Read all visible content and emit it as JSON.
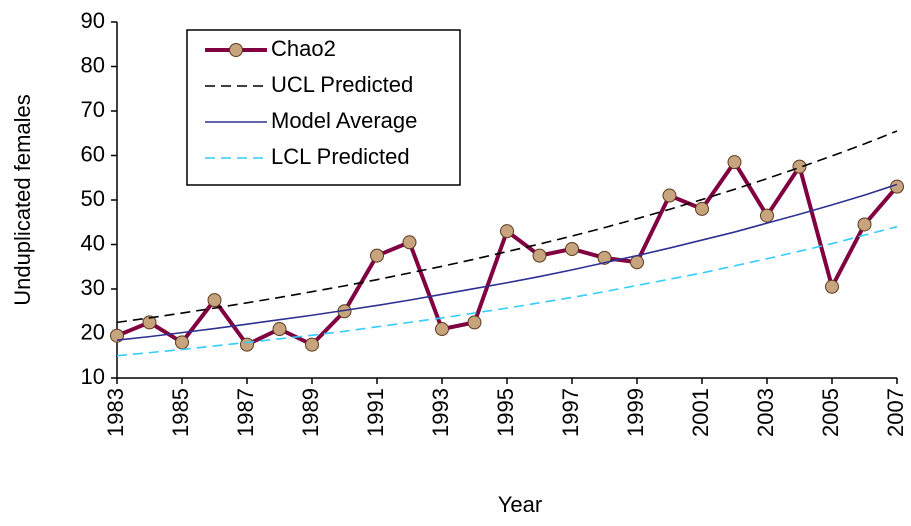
{
  "chart_data": {
    "type": "line",
    "x_label": "Year",
    "y_label": "Unduplicated females",
    "x": [
      1983,
      1984,
      1985,
      1986,
      1987,
      1988,
      1989,
      1990,
      1991,
      1992,
      1993,
      1994,
      1995,
      1996,
      1997,
      1998,
      1999,
      2000,
      2001,
      2002,
      2003,
      2004,
      2005,
      2006,
      2007
    ],
    "xlim": [
      1983,
      2007
    ],
    "xticks": [
      1983,
      1985,
      1987,
      1989,
      1991,
      1993,
      1995,
      1997,
      1999,
      2001,
      2003,
      2005,
      2007
    ],
    "ylim": [
      10,
      90
    ],
    "yticks": [
      10,
      20,
      30,
      40,
      50,
      60,
      70,
      80,
      90
    ],
    "legend": "upper left",
    "series": [
      {
        "name": "Chao2",
        "color": "#800040",
        "marker_color": "#c8a47e",
        "dashed": false,
        "values": [
          19.5,
          22.5,
          18,
          27.5,
          17.5,
          21,
          17.5,
          25,
          37.5,
          40.5,
          21,
          22.5,
          43,
          37.5,
          39,
          37,
          36,
          51,
          48,
          58.5,
          46.5,
          57.5,
          30.5,
          44.5,
          53
        ]
      },
      {
        "name": "UCL Predicted",
        "color": "#000000",
        "dashed": true,
        "values": [
          22.5,
          23.5,
          24.6,
          25.7,
          26.9,
          28.1,
          29.4,
          30.7,
          32.1,
          33.6,
          35.1,
          36.7,
          38.4,
          40.1,
          41.9,
          43.8,
          45.8,
          47.9,
          50.1,
          52.4,
          54.8,
          57.3,
          59.9,
          62.6,
          65.5
        ]
      },
      {
        "name": "Model Average",
        "color": "#2e3192",
        "dashed": false,
        "values": [
          18.5,
          19.3,
          20.2,
          21.1,
          22.1,
          23.1,
          24.1,
          25.2,
          26.3,
          27.5,
          28.8,
          30.1,
          31.4,
          32.8,
          34.3,
          35.9,
          37.5,
          39.2,
          41.0,
          42.8,
          44.8,
          46.8,
          48.9,
          51.1,
          53.5
        ]
      },
      {
        "name": "LCL Predicted",
        "color": "#33ccff",
        "dashed": true,
        "values": [
          15,
          15.7,
          16.4,
          17.2,
          18.0,
          18.8,
          19.6,
          20.5,
          21.5,
          22.5,
          23.5,
          24.6,
          25.7,
          26.9,
          28.1,
          29.4,
          30.8,
          32.2,
          33.6,
          35.2,
          36.8,
          38.5,
          40.2,
          42.1,
          44.0
        ]
      }
    ]
  }
}
